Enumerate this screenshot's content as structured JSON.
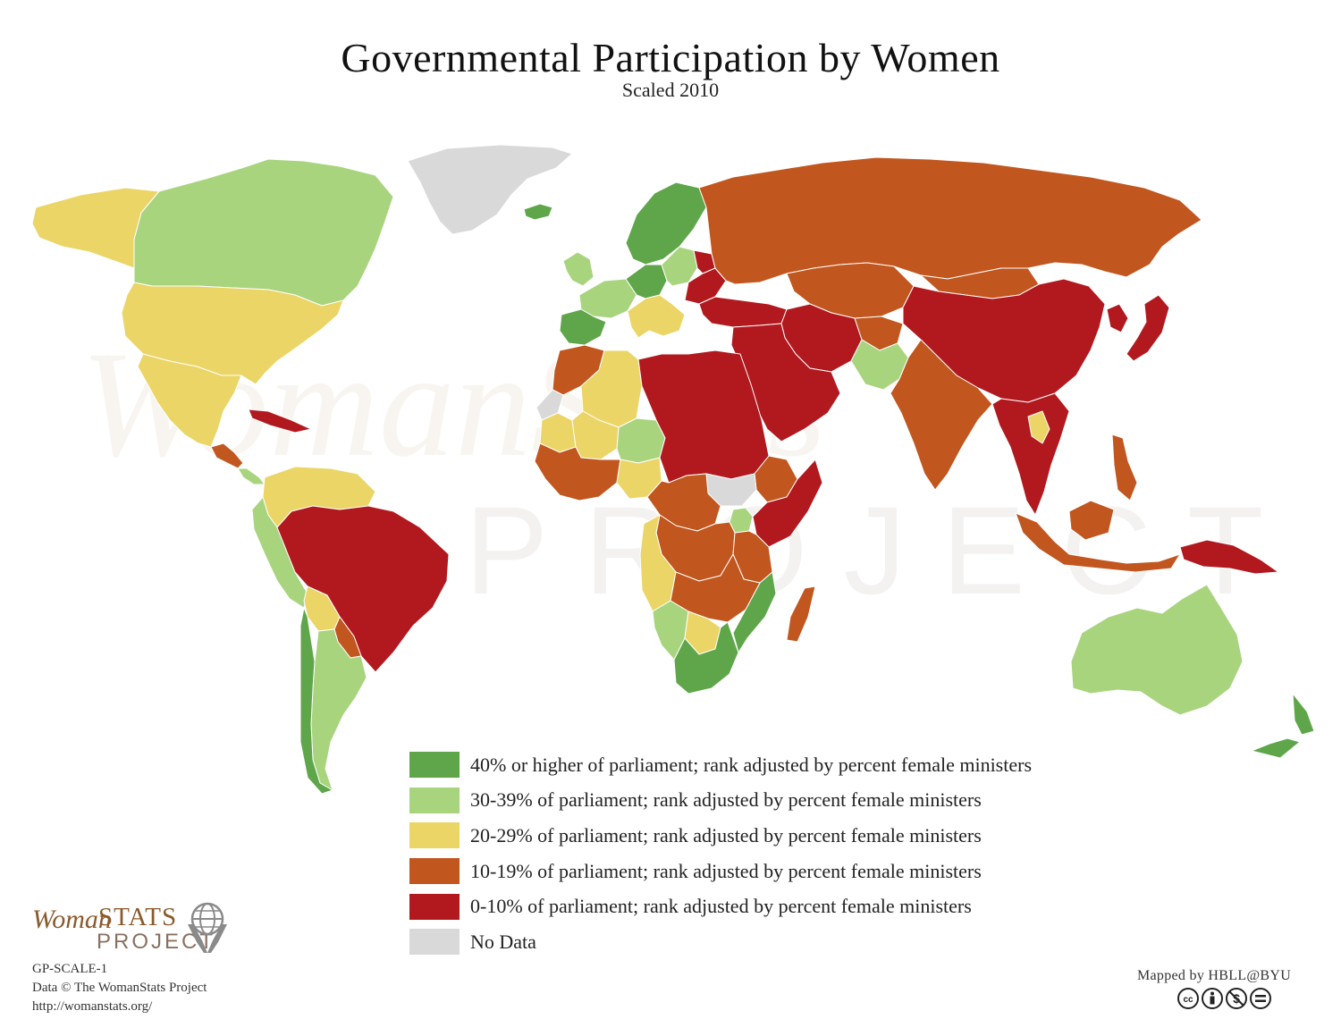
{
  "title": "Governmental Participation by Women",
  "subtitle": "Scaled 2010",
  "colors": {
    "cat_40_plus": "#5fa64b",
    "cat_30_39": "#a8d47e",
    "cat_20_29": "#ebd567",
    "cat_10_19": "#c1561f",
    "cat_0_10": "#b1191f",
    "no_data": "#d9d9d9",
    "ocean": "#ffffff"
  },
  "legend": [
    {
      "color_key": "cat_40_plus",
      "label": "40% or higher of parliament; rank adjusted by percent female ministers"
    },
    {
      "color_key": "cat_30_39",
      "label": "30-39% of parliament; rank adjusted by percent female ministers"
    },
    {
      "color_key": "cat_20_29",
      "label": "20-29% of parliament; rank adjusted by percent female ministers"
    },
    {
      "color_key": "cat_10_19",
      "label": "10-19% of parliament; rank adjusted by percent female ministers"
    },
    {
      "color_key": "cat_0_10",
      "label": "0-10% of parliament; rank adjusted by percent female ministers"
    },
    {
      "color_key": "no_data",
      "label": "No Data"
    }
  ],
  "regions": {
    "greenland": "no_data",
    "alaska": "cat_20_29",
    "canada": "cat_30_39",
    "usa": "cat_20_29",
    "mexico": "cat_20_29",
    "cuba": "cat_0_10",
    "central_america": "cat_10_19",
    "costa_rica": "cat_30_39",
    "iceland": "cat_40_plus",
    "colombia_venezuela": "cat_20_29",
    "ecuador_peru": "cat_30_39",
    "brazil": "cat_0_10",
    "bolivia": "cat_20_29",
    "paraguay": "cat_10_19",
    "argentina": "cat_30_39",
    "chile": "cat_40_plus",
    "scandinavia": "cat_40_plus",
    "uk_ireland": "cat_30_39",
    "western_europe": "cat_30_39",
    "spain": "cat_40_plus",
    "germany": "cat_40_plus",
    "poland": "cat_30_39",
    "italy_balkans": "cat_20_29",
    "belarus": "cat_0_10",
    "romania": "cat_0_10",
    "russia": "cat_10_19",
    "turkey": "cat_0_10",
    "kazakhstan": "cat_10_19",
    "mongolia": "cat_10_19",
    "china": "cat_0_10",
    "korea_japan": "cat_0_10",
    "middle_east": "cat_0_10",
    "iran": "cat_0_10",
    "afghanistan": "cat_10_19",
    "pakistan": "cat_30_39",
    "india": "cat_10_19",
    "southeast_asia": "cat_0_10",
    "laos": "cat_20_29",
    "indonesia": "cat_10_19",
    "philippines": "cat_10_19",
    "papua": "cat_0_10",
    "australia": "cat_30_39",
    "new_zealand": "cat_40_plus",
    "north_africa": "cat_0_10",
    "morocco": "cat_10_19",
    "west_sahara": "no_data",
    "mauritania": "cat_20_29",
    "algeria": "cat_20_29",
    "mali": "cat_20_29",
    "niger": "cat_30_39",
    "west_africa": "cat_10_19",
    "nigeria": "cat_20_29",
    "central_africa": "cat_10_19",
    "south_sudan": "no_data",
    "ethiopia": "cat_10_19",
    "somalia_kenya": "cat_0_10",
    "uganda": "cat_30_39",
    "congo": "cat_10_19",
    "tanzania": "cat_10_19",
    "mozambique": "cat_40_plus",
    "angola": "cat_20_29",
    "namibia": "cat_30_39",
    "botswana": "cat_20_29",
    "zimbabwe": "cat_10_19",
    "south_africa": "cat_40_plus",
    "madagascar": "cat_10_19"
  },
  "watermark": {
    "word_1": "WomanStats",
    "word_2": "PROJECT"
  },
  "logo": {
    "woman": "Woman",
    "stats": "STATS",
    "project": "PROJECT"
  },
  "credits": [
    "GP-SCALE-1",
    "Data © The WomanStats Project",
    "http://womanstats.org/"
  ],
  "mapped_by": "Mapped by HBLL@BYU",
  "license_icons": [
    "cc-icon",
    "by-icon",
    "nc-icon",
    "nd-icon"
  ]
}
